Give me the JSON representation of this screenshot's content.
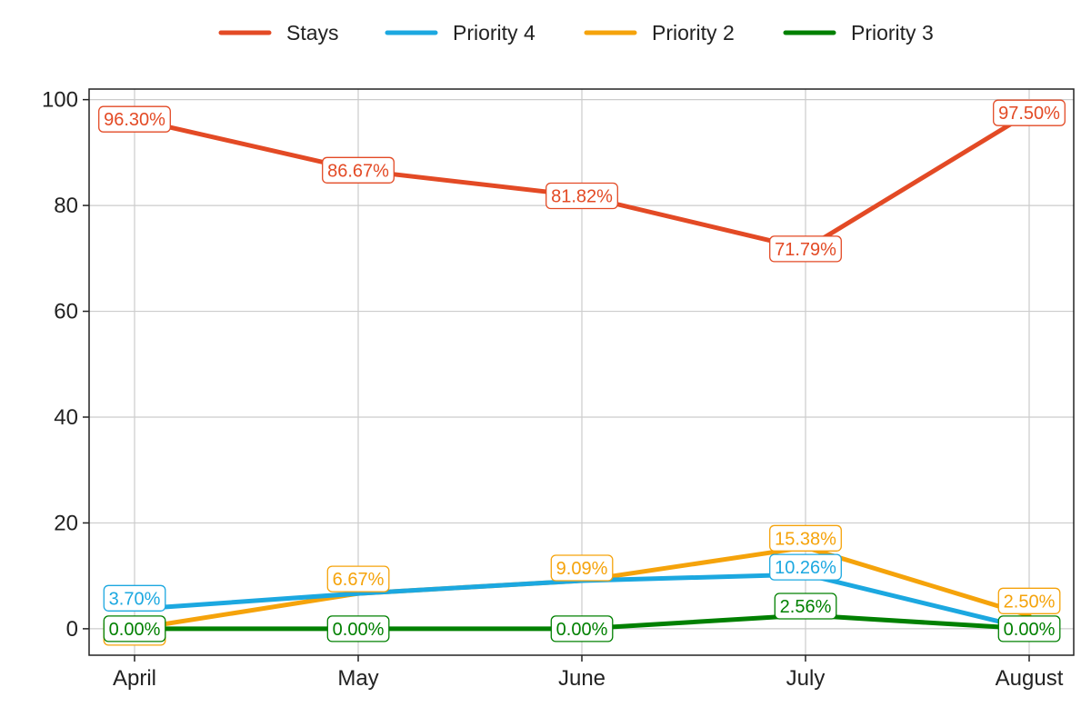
{
  "chart_data": {
    "type": "line",
    "title": "",
    "xlabel": "",
    "ylabel": "",
    "categories": [
      "April",
      "May",
      "June",
      "July",
      "August"
    ],
    "ylim": [
      -5,
      102
    ],
    "yticks": [
      0,
      20,
      40,
      60,
      80,
      100
    ],
    "grid": true,
    "legend": "top-center",
    "series": [
      {
        "name": "Stays",
        "color": "#e34a25",
        "values": [
          96.3,
          86.67,
          81.82,
          71.79,
          97.5
        ],
        "labels": [
          "96.30%",
          "86.67%",
          "81.82%",
          "71.79%",
          "97.50%"
        ]
      },
      {
        "name": "Priority 4",
        "color": "#1ca8e0",
        "values": [
          3.7,
          6.67,
          9.09,
          10.26,
          0.0
        ],
        "labels": [
          "3.70%",
          "6.67%",
          "9.09%",
          "10.26%",
          "0.00%"
        ]
      },
      {
        "name": "Priority 2",
        "color": "#f5a30b",
        "values": [
          0.0,
          6.67,
          9.09,
          15.38,
          2.5
        ],
        "labels": [
          "0.00%",
          "6.67%",
          "9.09%",
          "15.38%",
          "2.50%"
        ]
      },
      {
        "name": "Priority 3",
        "color": "#008000",
        "values": [
          0.0,
          0.0,
          0.0,
          2.56,
          0.0
        ],
        "labels": [
          "0.00%",
          "0.00%",
          "0.00%",
          "2.56%",
          "0.00%"
        ]
      }
    ]
  }
}
